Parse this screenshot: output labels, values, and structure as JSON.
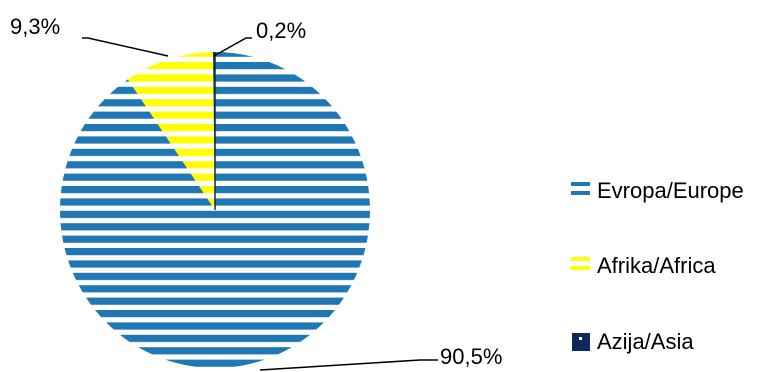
{
  "chart_data": {
    "type": "pie",
    "title": "",
    "categories": [
      "Evropa/Europe",
      "Afrika/Africa",
      "Azija/Asia"
    ],
    "values": [
      90.5,
      9.3,
      0.2
    ],
    "data_labels": [
      "90,5%",
      "9,3%",
      "0,2%"
    ],
    "colors": [
      "#1f77b4",
      "#ffff00",
      "#0d2a5c"
    ],
    "fill_pattern": "horizontal-stripes",
    "legend_position": "right"
  }
}
